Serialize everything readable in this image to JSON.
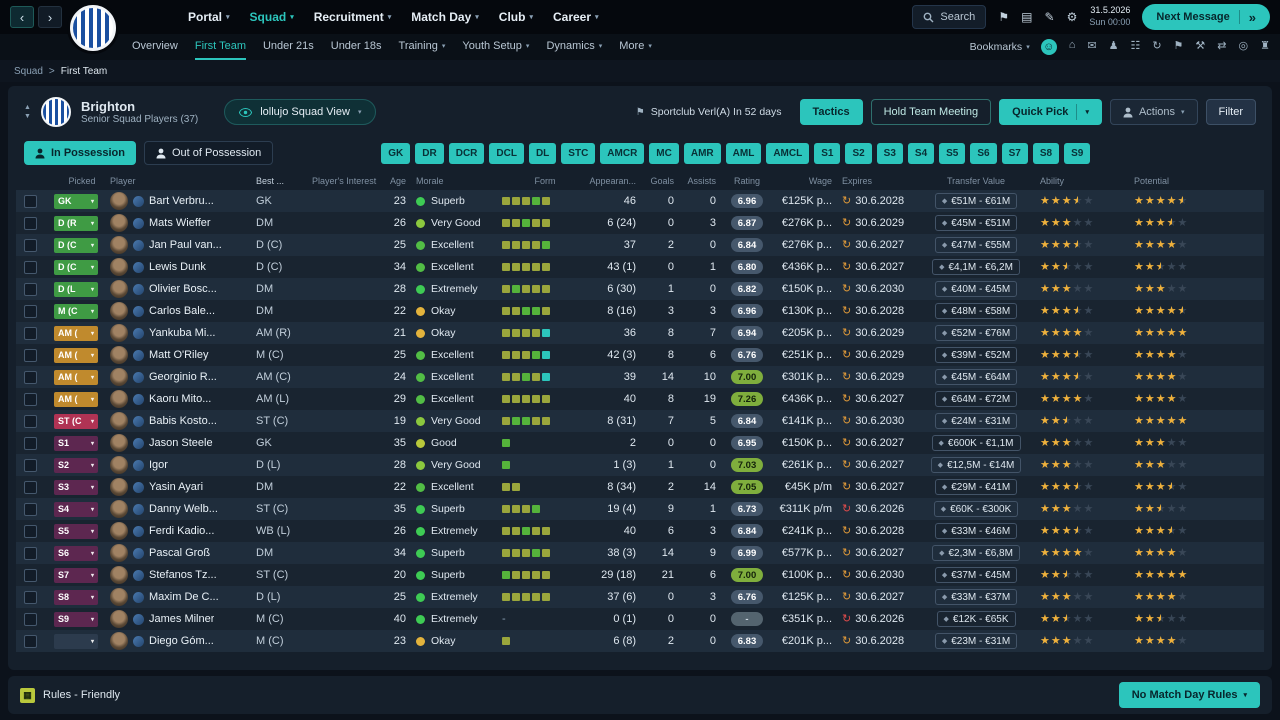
{
  "colors": {
    "teal": "#2cc5bc",
    "star_gold": "#efb13c",
    "rating_hi_bg": "#7fae3d",
    "pos": {
      "green": "#3f9b44",
      "amber": "#c08a2d",
      "red": "#b03354",
      "purple": "#5d2750",
      "none": "#2c3b4d"
    },
    "morale": {
      "Superb": "#3ecb54",
      "Excellent": "#52bd45",
      "Very Good": "#8cc83e",
      "Good": "#b9c93b",
      "Extremely": "#3ecb54",
      "Okay": "#e3b33c"
    },
    "form": {
      "o": "#9aa63c",
      "g": "#55b33b",
      "t": "#2cc5bc"
    }
  },
  "topbar": {
    "nav": [
      {
        "label": "Portal",
        "chevron": true,
        "active": false
      },
      {
        "label": "Squad",
        "chevron": true,
        "active": true
      },
      {
        "label": "Recruitment",
        "chevron": true,
        "active": false
      },
      {
        "label": "Match Day",
        "chevron": true,
        "active": false
      },
      {
        "label": "Club",
        "chevron": true,
        "active": false
      },
      {
        "label": "Career",
        "chevron": true,
        "active": false
      }
    ],
    "search_label": "Search",
    "icons": [
      {
        "name": "bookmark-icon",
        "glyph": "⚑"
      },
      {
        "name": "notes-icon",
        "glyph": "▤"
      },
      {
        "name": "edit-icon",
        "glyph": "✎"
      },
      {
        "name": "settings-icon",
        "glyph": "⚙"
      }
    ],
    "date": "31.5.2026",
    "time": "Sun 00:00",
    "next_message": "Next Message",
    "next_message_arrow": "»"
  },
  "subnav": {
    "items": [
      {
        "label": "Overview",
        "chevron": false,
        "active": false
      },
      {
        "label": "First Team",
        "chevron": false,
        "active": true
      },
      {
        "label": "Under 21s",
        "chevron": false,
        "active": false
      },
      {
        "label": "Under 18s",
        "chevron": false,
        "active": false
      },
      {
        "label": "Training",
        "chevron": true,
        "active": false
      },
      {
        "label": "Youth Setup",
        "chevron": true,
        "active": false
      },
      {
        "label": "Dynamics",
        "chevron": true,
        "active": false
      },
      {
        "label": "More",
        "chevron": true,
        "active": false
      }
    ],
    "bookmarks_label": "Bookmarks",
    "icons": [
      {
        "name": "social-icon",
        "glyph": "☺",
        "active": true
      },
      {
        "name": "home-icon",
        "glyph": "⌂",
        "active": false
      },
      {
        "name": "inbox-icon",
        "glyph": "✉",
        "active": false
      },
      {
        "name": "squad-icon",
        "glyph": "♟",
        "active": false
      },
      {
        "name": "schedule-icon",
        "glyph": "☷",
        "active": false
      },
      {
        "name": "refresh-icon",
        "glyph": "↻",
        "active": false
      },
      {
        "name": "scouting-icon",
        "glyph": "⚑",
        "active": false
      },
      {
        "name": "training-icon",
        "glyph": "⚒",
        "active": false
      },
      {
        "name": "transfers-icon",
        "glyph": "⇄",
        "active": false
      },
      {
        "name": "finances-icon",
        "glyph": "◎",
        "active": false
      },
      {
        "name": "staff-icon",
        "glyph": "♜",
        "active": false
      }
    ]
  },
  "breadcrumb": {
    "parent": "Squad",
    "separator": ">",
    "current": "First Team"
  },
  "header": {
    "club": "Brighton",
    "subtitle": "Senior Squad Players (37)",
    "view_dropdown": "lollujo Squad View",
    "next_match": "Sportclub Verl(A) In 52 days",
    "tactics": "Tactics",
    "hold_meeting": "Hold Team Meeting",
    "quick_pick": "Quick Pick",
    "actions": "Actions",
    "filter": "Filter"
  },
  "possession": {
    "in_label": "In Possession",
    "out_label": "Out of Possession"
  },
  "position_buttons": [
    "GK",
    "DR",
    "DCR",
    "DCL",
    "DL",
    "STC",
    "AMCR",
    "MC",
    "AMR",
    "AML",
    "AMCL",
    "S1",
    "S2",
    "S3",
    "S4",
    "S5",
    "S6",
    "S7",
    "S8",
    "S9"
  ],
  "table": {
    "columns": [
      "Picked",
      "Player",
      "Best ...",
      "Player's Interest",
      "Age",
      "Morale",
      "Form",
      "Appearan...",
      "Goals",
      "Assists",
      "Rating",
      "Wage",
      "Expires",
      "Transfer Value",
      "Ability",
      "Potential"
    ],
    "rows": [
      {
        "pos": "GK",
        "pos_color": "green",
        "name": "Bart Verbru...",
        "best": "GK",
        "age": "23",
        "morale": "Superb",
        "form": [
          "o",
          "o",
          "o",
          "g",
          "o"
        ],
        "apps": "46",
        "goals": "0",
        "assists": "0",
        "rating": "6.96",
        "rating_hi": false,
        "wage": "€125K p...",
        "expires": "30.6.2028",
        "expires_soon": false,
        "value": "€51M - €61M",
        "ability": 3.5,
        "potential": 4.5
      },
      {
        "pos": "D (R",
        "pos_color": "green",
        "name": "Mats Wieffer",
        "best": "DM",
        "age": "26",
        "morale": "Very Good",
        "form": [
          "o",
          "o",
          "g",
          "o",
          "o"
        ],
        "apps": "6 (24)",
        "goals": "0",
        "assists": "3",
        "rating": "6.87",
        "rating_hi": false,
        "wage": "€276K p...",
        "expires": "30.6.2029",
        "expires_soon": false,
        "value": "€45M - €51M",
        "ability": 3,
        "potential": 3.5
      },
      {
        "pos": "D (C",
        "pos_color": "green",
        "name": "Jan Paul van...",
        "best": "D (C)",
        "age": "25",
        "morale": "Excellent",
        "form": [
          "o",
          "o",
          "o",
          "o",
          "g"
        ],
        "apps": "37",
        "goals": "2",
        "assists": "0",
        "rating": "6.84",
        "rating_hi": false,
        "wage": "€276K p...",
        "expires": "30.6.2027",
        "expires_soon": false,
        "value": "€47M - €55M",
        "ability": 3.5,
        "potential": 4
      },
      {
        "pos": "D (C",
        "pos_color": "green",
        "name": "Lewis Dunk",
        "best": "D (C)",
        "age": "34",
        "morale": "Excellent",
        "form": [
          "o",
          "o",
          "o",
          "o",
          "o"
        ],
        "apps": "43 (1)",
        "goals": "0",
        "assists": "1",
        "rating": "6.80",
        "rating_hi": false,
        "wage": "€436K p...",
        "expires": "30.6.2027",
        "expires_soon": false,
        "value": "€4,1M - €6,2M",
        "ability": 2.5,
        "potential": 2.5
      },
      {
        "pos": "D (L",
        "pos_color": "green",
        "name": "Olivier Bosc...",
        "best": "DM",
        "age": "28",
        "morale": "Extremely",
        "form": [
          "o",
          "g",
          "o",
          "o",
          "o"
        ],
        "apps": "6 (30)",
        "goals": "1",
        "assists": "0",
        "rating": "6.82",
        "rating_hi": false,
        "wage": "€150K p...",
        "expires": "30.6.2030",
        "expires_soon": false,
        "value": "€40M - €45M",
        "ability": 3,
        "potential": 3
      },
      {
        "pos": "M (C",
        "pos_color": "green",
        "name": "Carlos Bale...",
        "best": "DM",
        "age": "22",
        "morale": "Okay",
        "form": [
          "o",
          "o",
          "g",
          "g",
          "o"
        ],
        "apps": "8 (16)",
        "goals": "3",
        "assists": "3",
        "rating": "6.96",
        "rating_hi": false,
        "wage": "€130K p...",
        "expires": "30.6.2028",
        "expires_soon": false,
        "value": "€48M - €58M",
        "ability": 3.5,
        "potential": 4.5
      },
      {
        "pos": "AM (",
        "pos_color": "amber",
        "name": "Yankuba Mi...",
        "best": "AM (R)",
        "age": "21",
        "morale": "Okay",
        "form": [
          "o",
          "o",
          "o",
          "o",
          "t"
        ],
        "apps": "36",
        "goals": "8",
        "assists": "7",
        "rating": "6.94",
        "rating_hi": false,
        "wage": "€205K p...",
        "expires": "30.6.2029",
        "expires_soon": false,
        "value": "€52M - €76M",
        "ability": 4,
        "potential": 5
      },
      {
        "pos": "AM (",
        "pos_color": "amber",
        "name": "Matt O'Riley",
        "best": "M (C)",
        "age": "25",
        "morale": "Excellent",
        "form": [
          "o",
          "o",
          "o",
          "g",
          "t"
        ],
        "apps": "42 (3)",
        "goals": "8",
        "assists": "6",
        "rating": "6.76",
        "rating_hi": false,
        "wage": "€251K p...",
        "expires": "30.6.2029",
        "expires_soon": false,
        "value": "€39M - €52M",
        "ability": 3.5,
        "potential": 4
      },
      {
        "pos": "AM (",
        "pos_color": "amber",
        "name": "Georginio R...",
        "best": "AM (C)",
        "age": "24",
        "morale": "Excellent",
        "form": [
          "o",
          "o",
          "g",
          "o",
          "t"
        ],
        "apps": "39",
        "goals": "14",
        "assists": "10",
        "rating": "7.00",
        "rating_hi": true,
        "wage": "€301K p...",
        "expires": "30.6.2029",
        "expires_soon": false,
        "value": "€45M - €64M",
        "ability": 3.5,
        "potential": 4
      },
      {
        "pos": "AM (",
        "pos_color": "amber",
        "name": "Kaoru Mito...",
        "best": "AM (L)",
        "age": "29",
        "morale": "Excellent",
        "form": [
          "o",
          "o",
          "o",
          "o",
          "o"
        ],
        "apps": "40",
        "goals": "8",
        "assists": "19",
        "rating": "7.26",
        "rating_hi": true,
        "wage": "€436K p...",
        "expires": "30.6.2027",
        "expires_soon": false,
        "value": "€64M - €72M",
        "ability": 4,
        "potential": 4
      },
      {
        "pos": "ST (C",
        "pos_color": "red",
        "name": "Babis Kosto...",
        "best": "ST (C)",
        "age": "19",
        "morale": "Very Good",
        "form": [
          "o",
          "g",
          "g",
          "o",
          "o"
        ],
        "apps": "8 (31)",
        "goals": "7",
        "assists": "5",
        "rating": "6.84",
        "rating_hi": false,
        "wage": "€141K p...",
        "expires": "30.6.2030",
        "expires_soon": false,
        "value": "€24M - €31M",
        "ability": 2.5,
        "potential": 5
      },
      {
        "pos": "S1",
        "pos_color": "purple",
        "name": "Jason Steele",
        "best": "GK",
        "age": "35",
        "morale": "Good",
        "form": [
          "g"
        ],
        "apps": "2",
        "goals": "0",
        "assists": "0",
        "rating": "6.95",
        "rating_hi": false,
        "wage": "€150K p...",
        "expires": "30.6.2027",
        "expires_soon": false,
        "value": "€600K - €1,1M",
        "ability": 3,
        "potential": 3
      },
      {
        "pos": "S2",
        "pos_color": "purple",
        "name": "Igor",
        "best": "D (L)",
        "age": "28",
        "morale": "Very Good",
        "form": [
          "g"
        ],
        "apps": "1 (3)",
        "goals": "1",
        "assists": "0",
        "rating": "7.03",
        "rating_hi": true,
        "wage": "€261K p...",
        "expires": "30.6.2027",
        "expires_soon": false,
        "value": "€12,5M - €14M",
        "ability": 3,
        "potential": 3
      },
      {
        "pos": "S3",
        "pos_color": "purple",
        "name": "Yasin Ayari",
        "best": "DM",
        "age": "22",
        "morale": "Excellent",
        "form": [
          "o",
          "o"
        ],
        "apps": "8 (34)",
        "goals": "2",
        "assists": "14",
        "rating": "7.05",
        "rating_hi": true,
        "wage": "€45K p/m",
        "expires": "30.6.2027",
        "expires_soon": false,
        "value": "€29M - €41M",
        "ability": 3.5,
        "potential": 3.5
      },
      {
        "pos": "S4",
        "pos_color": "purple",
        "name": "Danny Welb...",
        "best": "ST (C)",
        "age": "35",
        "morale": "Superb",
        "form": [
          "o",
          "o",
          "o",
          "g"
        ],
        "apps": "19 (4)",
        "goals": "9",
        "assists": "1",
        "rating": "6.73",
        "rating_hi": false,
        "wage": "€311K p/m",
        "expires": "30.6.2026",
        "expires_soon": true,
        "value": "€60K - €300K",
        "ability": 3,
        "potential": 2.5
      },
      {
        "pos": "S5",
        "pos_color": "purple",
        "name": "Ferdi Kadio...",
        "best": "WB (L)",
        "age": "26",
        "morale": "Extremely",
        "form": [
          "o",
          "o",
          "g",
          "o",
          "o"
        ],
        "apps": "40",
        "goals": "6",
        "assists": "3",
        "rating": "6.84",
        "rating_hi": false,
        "wage": "€241K p...",
        "expires": "30.6.2028",
        "expires_soon": false,
        "value": "€33M - €46M",
        "ability": 3.5,
        "potential": 3.5
      },
      {
        "pos": "S6",
        "pos_color": "purple",
        "name": "Pascal Groß",
        "best": "DM",
        "age": "34",
        "morale": "Superb",
        "form": [
          "o",
          "o",
          "o",
          "g",
          "o"
        ],
        "apps": "38 (3)",
        "goals": "14",
        "assists": "9",
        "rating": "6.99",
        "rating_hi": false,
        "wage": "€577K p...",
        "expires": "30.6.2027",
        "expires_soon": false,
        "value": "€2,3M - €6,8M",
        "ability": 4,
        "potential": 4
      },
      {
        "pos": "S7",
        "pos_color": "purple",
        "name": "Stefanos Tz...",
        "best": "ST (C)",
        "age": "20",
        "morale": "Superb",
        "form": [
          "g",
          "o",
          "o",
          "o",
          "o"
        ],
        "apps": "29 (18)",
        "goals": "21",
        "assists": "6",
        "rating": "7.00",
        "rating_hi": true,
        "wage": "€100K p...",
        "expires": "30.6.2030",
        "expires_soon": false,
        "value": "€37M - €45M",
        "ability": 2.5,
        "potential": 5
      },
      {
        "pos": "S8",
        "pos_color": "purple",
        "name": "Maxim De C...",
        "best": "D (L)",
        "age": "25",
        "morale": "Extremely",
        "form": [
          "o",
          "o",
          "o",
          "o",
          "o"
        ],
        "apps": "37 (6)",
        "goals": "0",
        "assists": "3",
        "rating": "6.76",
        "rating_hi": false,
        "wage": "€125K p...",
        "expires": "30.6.2027",
        "expires_soon": false,
        "value": "€33M - €37M",
        "ability": 3,
        "potential": 4
      },
      {
        "pos": "S9",
        "pos_color": "purple",
        "name": "James Milner",
        "best": "M (C)",
        "age": "40",
        "morale": "Extremely",
        "form": [],
        "apps": "0 (1)",
        "goals": "0",
        "assists": "0",
        "rating": "-",
        "rating_hi": false,
        "wage": "€351K p...",
        "expires": "30.6.2026",
        "expires_soon": true,
        "value": "€12K - €65K",
        "ability": 2.5,
        "potential": 2.5
      },
      {
        "pos": "",
        "pos_color": "none",
        "name": "Diego Góm...",
        "best": "M (C)",
        "age": "23",
        "morale": "Okay",
        "form": [
          "o"
        ],
        "apps": "6 (8)",
        "goals": "2",
        "assists": "0",
        "rating": "6.83",
        "rating_hi": false,
        "wage": "€201K p...",
        "expires": "30.6.2028",
        "expires_soon": false,
        "value": "€23M - €31M",
        "ability": 3,
        "potential": 4
      }
    ]
  },
  "footer": {
    "rules_label": "Rules - Friendly",
    "match_rules_button": "No Match Day Rules"
  }
}
